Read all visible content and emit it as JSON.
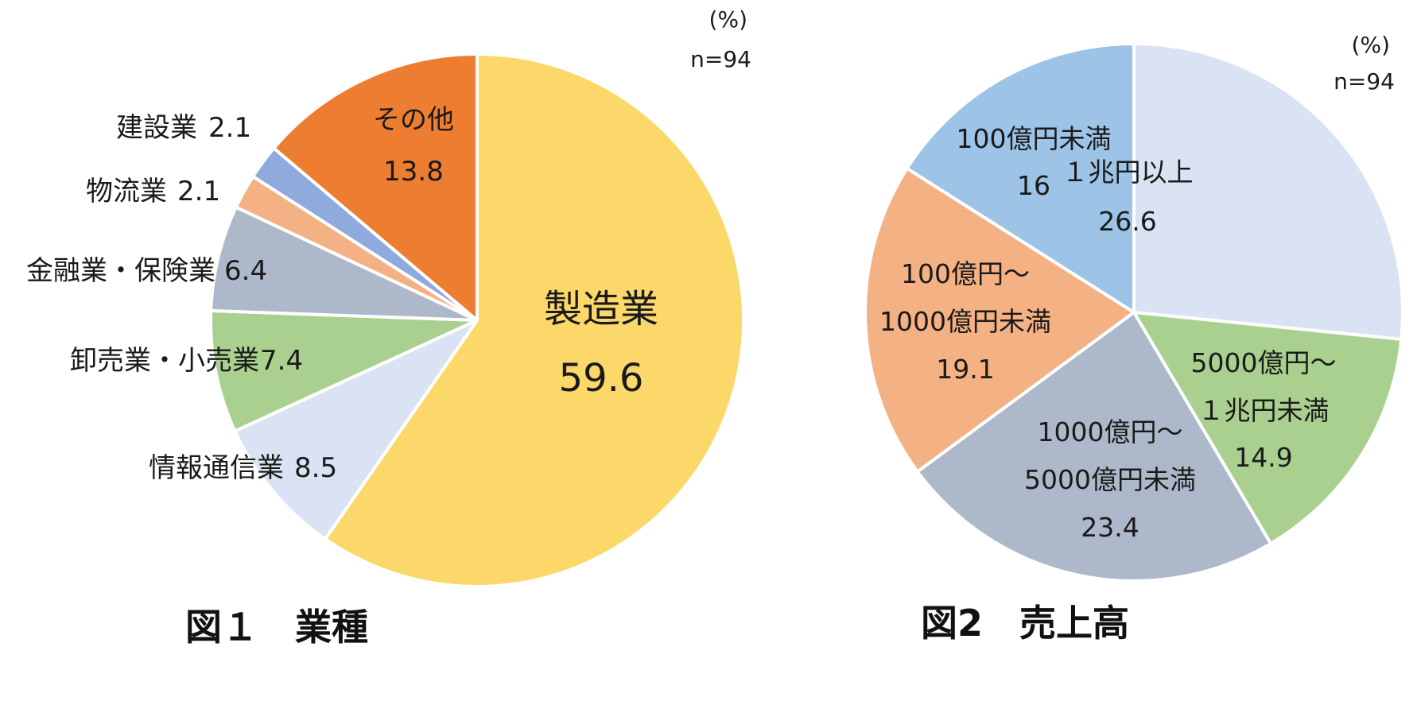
{
  "charts_meta": {
    "unit": "(%)",
    "n": "n=94",
    "slice_border_color": "#ffffff"
  },
  "chart_data": [
    {
      "type": "pie",
      "caption": "図１　業種",
      "unit": "(%)",
      "n": "n=94",
      "start_angle_deg": 0,
      "direction": "clockwise",
      "slices": [
        {
          "label": "製造業",
          "value": 59.6,
          "color": "#FCD86A"
        },
        {
          "label": "情報通信業",
          "value": 8.5,
          "color": "#DAE3F3"
        },
        {
          "label": "卸売業・小売業",
          "value": 7.4,
          "color": "#A9D08E"
        },
        {
          "label": "金融業・保険業",
          "value": 6.4,
          "color": "#ADB9CA"
        },
        {
          "label": "物流業",
          "value": 2.1,
          "color": "#F4B183"
        },
        {
          "label": "建設業",
          "value": 2.1,
          "color": "#8FAADC"
        },
        {
          "label": "その他",
          "value": 13.8,
          "color": "#ED7D31"
        }
      ]
    },
    {
      "type": "pie",
      "caption": "図2　売上高",
      "unit": "(%)",
      "n": "n=94",
      "start_angle_deg": 0,
      "direction": "clockwise",
      "slices": [
        {
          "label_lines": [
            "１兆円以上"
          ],
          "value": 26.6,
          "color": "#DAE3F3"
        },
        {
          "label_lines": [
            "5000億円～",
            "１兆円未満"
          ],
          "value": 14.9,
          "color": "#A9D08E"
        },
        {
          "label_lines": [
            "1000億円～",
            "5000億円未満"
          ],
          "value": 23.4,
          "color": "#ADB9CA"
        },
        {
          "label_lines": [
            "100億円～",
            "1000億円未満"
          ],
          "value": 19.1,
          "color": "#F4B183"
        },
        {
          "label_lines": [
            "100億円未満"
          ],
          "value": 16.0,
          "color": "#9DC3E6"
        }
      ]
    }
  ]
}
